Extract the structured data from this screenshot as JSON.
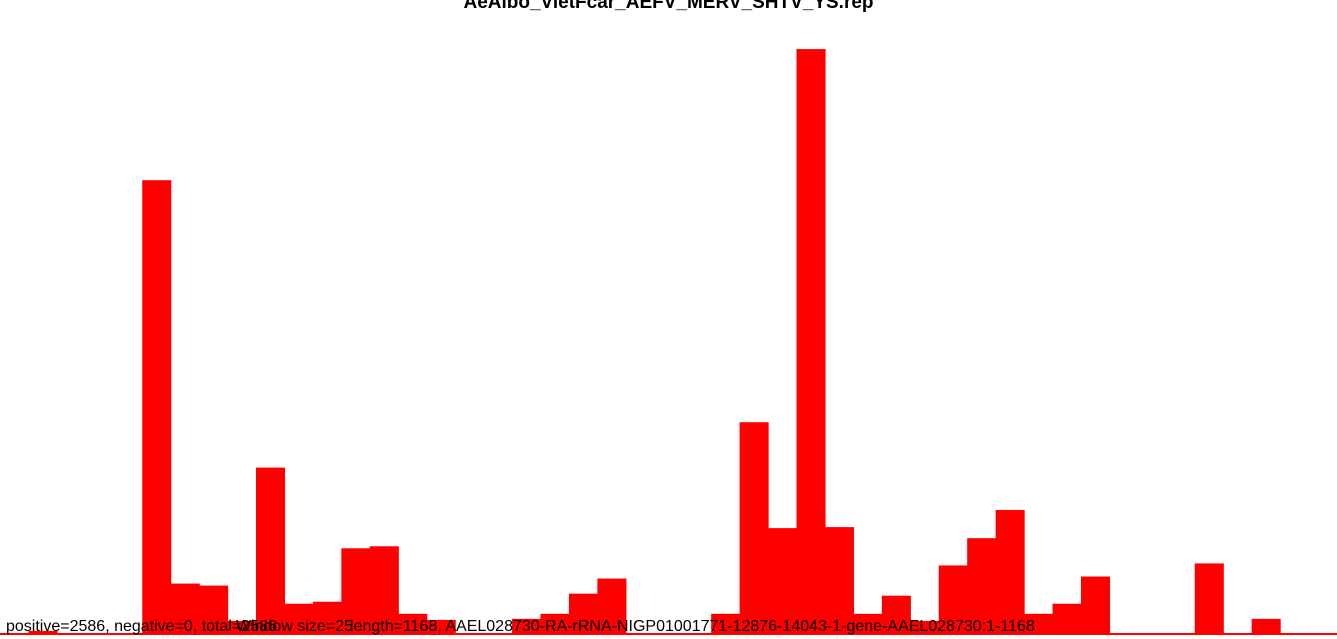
{
  "chart_data": {
    "type": "bar",
    "title": "AeAlbo_VietFcar_AEFV_MERV_SHTV_YS.rep",
    "bar_color": "#ff0000",
    "baseline_color": "#ff0000",
    "values": [
      1,
      3,
      1,
      1,
      1,
      450,
      50,
      48,
      13,
      165,
      30,
      32,
      85,
      87,
      20,
      14,
      1,
      1,
      15,
      20,
      40,
      55,
      1,
      1,
      1,
      20,
      210,
      105,
      580,
      106,
      20,
      38,
      13,
      68,
      95,
      123,
      20,
      30,
      57,
      1,
      1,
      1,
      70,
      1,
      15,
      1,
      1
    ],
    "ylim": [
      0,
      590
    ],
    "annotations": {
      "left": "positive=2586, negative=0, total=2586",
      "middle": "Window size=25",
      "right": "length=1168, AAEL028730-RA-rRNA-NIGP01001771-12876-14043-1-gene-AAEL028730:1-1168"
    }
  }
}
